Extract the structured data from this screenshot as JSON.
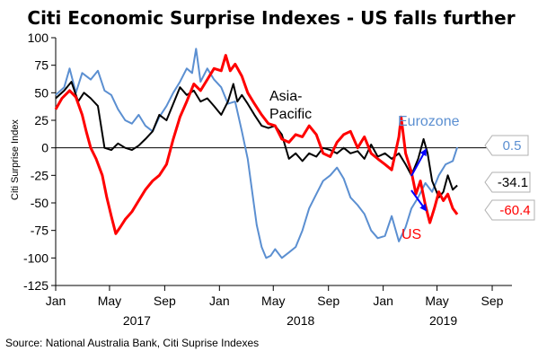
{
  "chart_data": {
    "type": "line",
    "title": "Citi Economic Surprise Indexes - US falls further",
    "ylabel": "Citi Surprise Index",
    "xlabel": "",
    "ylim": [
      -125,
      100
    ],
    "yticks": [
      100,
      75,
      50,
      25,
      0,
      -25,
      -50,
      -75,
      -100,
      -125
    ],
    "xlim": [
      "2017-01-01",
      "2019-10-15"
    ],
    "xticks": [
      {
        "label": "Jan",
        "date": "2017-01-01"
      },
      {
        "label": "May",
        "date": "2017-05-01"
      },
      {
        "label": "Sep",
        "date": "2017-09-01"
      },
      {
        "label": "Jan",
        "date": "2018-01-01"
      },
      {
        "label": "May",
        "date": "2018-05-01"
      },
      {
        "label": "Sep",
        "date": "2018-09-01"
      },
      {
        "label": "Jan",
        "date": "2019-01-01"
      },
      {
        "label": "May",
        "date": "2019-05-01"
      },
      {
        "label": "Sep",
        "date": "2019-09-01"
      }
    ],
    "year_labels": [
      {
        "label": "2017",
        "date": "2017-07-01"
      },
      {
        "label": "2018",
        "date": "2018-07-01"
      },
      {
        "label": "2019",
        "date": "2019-05-15"
      }
    ],
    "grid": false,
    "zero_line": true,
    "series": [
      {
        "name": "Eurozone",
        "color": "#5b8fd1",
        "points": [
          [
            "2017-01-01",
            48
          ],
          [
            "2017-01-20",
            55
          ],
          [
            "2017-02-01",
            72
          ],
          [
            "2017-02-15",
            50
          ],
          [
            "2017-03-01",
            68
          ],
          [
            "2017-03-20",
            62
          ],
          [
            "2017-04-05",
            70
          ],
          [
            "2017-04-20",
            52
          ],
          [
            "2017-05-05",
            48
          ],
          [
            "2017-05-20",
            35
          ],
          [
            "2017-06-05",
            25
          ],
          [
            "2017-06-20",
            22
          ],
          [
            "2017-07-05",
            30
          ],
          [
            "2017-07-20",
            20
          ],
          [
            "2017-08-05",
            15
          ],
          [
            "2017-08-20",
            28
          ],
          [
            "2017-09-05",
            38
          ],
          [
            "2017-09-20",
            50
          ],
          [
            "2017-10-05",
            60
          ],
          [
            "2017-10-20",
            72
          ],
          [
            "2017-11-01",
            68
          ],
          [
            "2017-11-10",
            90
          ],
          [
            "2017-11-20",
            60
          ],
          [
            "2017-12-05",
            72
          ],
          [
            "2017-12-20",
            62
          ],
          [
            "2018-01-05",
            55
          ],
          [
            "2018-01-20",
            40
          ],
          [
            "2018-02-05",
            42
          ],
          [
            "2018-02-20",
            15
          ],
          [
            "2018-03-05",
            -10
          ],
          [
            "2018-03-15",
            -40
          ],
          [
            "2018-03-25",
            -70
          ],
          [
            "2018-04-05",
            -90
          ],
          [
            "2018-04-15",
            -100
          ],
          [
            "2018-04-25",
            -98
          ],
          [
            "2018-05-05",
            -92
          ],
          [
            "2018-05-20",
            -100
          ],
          [
            "2018-06-05",
            -95
          ],
          [
            "2018-06-20",
            -90
          ],
          [
            "2018-07-05",
            -75
          ],
          [
            "2018-07-20",
            -55
          ],
          [
            "2018-08-05",
            -42
          ],
          [
            "2018-08-20",
            -30
          ],
          [
            "2018-09-05",
            -25
          ],
          [
            "2018-09-20",
            -18
          ],
          [
            "2018-10-05",
            -28
          ],
          [
            "2018-10-20",
            -45
          ],
          [
            "2018-11-05",
            -52
          ],
          [
            "2018-11-20",
            -60
          ],
          [
            "2018-12-05",
            -75
          ],
          [
            "2018-12-20",
            -82
          ],
          [
            "2019-01-05",
            -80
          ],
          [
            "2019-01-20",
            -62
          ],
          [
            "2019-02-05",
            -85
          ],
          [
            "2019-02-20",
            -72
          ],
          [
            "2019-03-05",
            -55
          ],
          [
            "2019-03-20",
            -45
          ],
          [
            "2019-04-05",
            -32
          ],
          [
            "2019-04-20",
            -40
          ],
          [
            "2019-05-05",
            -25
          ],
          [
            "2019-05-20",
            -15
          ],
          [
            "2019-06-05",
            -12
          ],
          [
            "2019-06-15",
            0.5
          ]
        ],
        "end_label": "0.5"
      },
      {
        "name": "Asia-Pacific",
        "color": "#000000",
        "points": [
          [
            "2017-01-01",
            45
          ],
          [
            "2017-01-20",
            52
          ],
          [
            "2017-02-05",
            60
          ],
          [
            "2017-02-20",
            42
          ],
          [
            "2017-03-05",
            50
          ],
          [
            "2017-03-20",
            45
          ],
          [
            "2017-04-05",
            38
          ],
          [
            "2017-04-20",
            0
          ],
          [
            "2017-05-05",
            -2
          ],
          [
            "2017-05-20",
            4
          ],
          [
            "2017-06-05",
            0
          ],
          [
            "2017-06-20",
            -2
          ],
          [
            "2017-07-05",
            2
          ],
          [
            "2017-07-20",
            8
          ],
          [
            "2017-08-05",
            15
          ],
          [
            "2017-08-20",
            30
          ],
          [
            "2017-09-05",
            25
          ],
          [
            "2017-09-20",
            40
          ],
          [
            "2017-10-05",
            55
          ],
          [
            "2017-10-20",
            48
          ],
          [
            "2017-11-05",
            52
          ],
          [
            "2017-11-20",
            42
          ],
          [
            "2017-12-05",
            45
          ],
          [
            "2017-12-20",
            38
          ],
          [
            "2018-01-05",
            30
          ],
          [
            "2018-01-20",
            42
          ],
          [
            "2018-02-01",
            58
          ],
          [
            "2018-02-10",
            42
          ],
          [
            "2018-02-20",
            48
          ],
          [
            "2018-03-05",
            40
          ],
          [
            "2018-03-20",
            30
          ],
          [
            "2018-04-05",
            20
          ],
          [
            "2018-04-20",
            18
          ],
          [
            "2018-05-05",
            20
          ],
          [
            "2018-05-20",
            12
          ],
          [
            "2018-06-05",
            -10
          ],
          [
            "2018-06-20",
            -5
          ],
          [
            "2018-07-05",
            -12
          ],
          [
            "2018-07-20",
            -5
          ],
          [
            "2018-08-05",
            -8
          ],
          [
            "2018-08-20",
            0
          ],
          [
            "2018-09-05",
            -2
          ],
          [
            "2018-09-20",
            -5
          ],
          [
            "2018-10-05",
            0
          ],
          [
            "2018-10-20",
            -5
          ],
          [
            "2018-11-05",
            -3
          ],
          [
            "2018-11-20",
            -10
          ],
          [
            "2018-12-05",
            3
          ],
          [
            "2018-12-20",
            -8
          ],
          [
            "2019-01-05",
            -5
          ],
          [
            "2019-01-20",
            -10
          ],
          [
            "2019-02-05",
            -5
          ],
          [
            "2019-02-20",
            -15
          ],
          [
            "2019-03-05",
            -25
          ],
          [
            "2019-03-20",
            -10
          ],
          [
            "2019-04-01",
            8
          ],
          [
            "2019-04-10",
            -5
          ],
          [
            "2019-04-20",
            -30
          ],
          [
            "2019-05-05",
            -45
          ],
          [
            "2019-05-15",
            -40
          ],
          [
            "2019-05-25",
            -25
          ],
          [
            "2019-06-05",
            -38
          ],
          [
            "2019-06-15",
            -34.1
          ]
        ],
        "end_label": "-34.1"
      },
      {
        "name": "US",
        "color": "#ff0000",
        "points": [
          [
            "2017-01-01",
            35
          ],
          [
            "2017-01-15",
            45
          ],
          [
            "2017-02-01",
            52
          ],
          [
            "2017-02-15",
            46
          ],
          [
            "2017-03-01",
            30
          ],
          [
            "2017-03-10",
            15
          ],
          [
            "2017-03-20",
            0
          ],
          [
            "2017-04-01",
            -10
          ],
          [
            "2017-04-15",
            -25
          ],
          [
            "2017-04-25",
            -45
          ],
          [
            "2017-05-05",
            -62
          ],
          [
            "2017-05-15",
            -78
          ],
          [
            "2017-05-25",
            -72
          ],
          [
            "2017-06-05",
            -65
          ],
          [
            "2017-06-20",
            -58
          ],
          [
            "2017-07-05",
            -48
          ],
          [
            "2017-07-20",
            -38
          ],
          [
            "2017-08-05",
            -30
          ],
          [
            "2017-08-20",
            -25
          ],
          [
            "2017-09-05",
            -15
          ],
          [
            "2017-09-20",
            8
          ],
          [
            "2017-10-05",
            28
          ],
          [
            "2017-10-20",
            42
          ],
          [
            "2017-11-05",
            58
          ],
          [
            "2017-11-20",
            52
          ],
          [
            "2017-12-05",
            62
          ],
          [
            "2017-12-20",
            72
          ],
          [
            "2018-01-05",
            70
          ],
          [
            "2018-01-15",
            84
          ],
          [
            "2018-01-25",
            70
          ],
          [
            "2018-02-05",
            76
          ],
          [
            "2018-02-20",
            65
          ],
          [
            "2018-03-05",
            50
          ],
          [
            "2018-03-20",
            40
          ],
          [
            "2018-04-05",
            30
          ],
          [
            "2018-04-20",
            22
          ],
          [
            "2018-05-05",
            20
          ],
          [
            "2018-05-20",
            8
          ],
          [
            "2018-06-05",
            5
          ],
          [
            "2018-06-20",
            12
          ],
          [
            "2018-07-05",
            10
          ],
          [
            "2018-07-20",
            20
          ],
          [
            "2018-08-05",
            12
          ],
          [
            "2018-08-20",
            -5
          ],
          [
            "2018-09-05",
            -8
          ],
          [
            "2018-09-20",
            5
          ],
          [
            "2018-10-05",
            12
          ],
          [
            "2018-10-20",
            15
          ],
          [
            "2018-11-05",
            0
          ],
          [
            "2018-11-20",
            10
          ],
          [
            "2018-12-05",
            -5
          ],
          [
            "2018-12-20",
            -10
          ],
          [
            "2019-01-05",
            -15
          ],
          [
            "2019-01-20",
            -20
          ],
          [
            "2019-02-05",
            10
          ],
          [
            "2019-02-10",
            28
          ],
          [
            "2019-02-20",
            -5
          ],
          [
            "2019-03-05",
            -22
          ],
          [
            "2019-03-15",
            -42
          ],
          [
            "2019-03-25",
            -30
          ],
          [
            "2019-04-05",
            -52
          ],
          [
            "2019-04-15",
            -68
          ],
          [
            "2019-04-25",
            -55
          ],
          [
            "2019-05-05",
            -40
          ],
          [
            "2019-05-15",
            -48
          ],
          [
            "2019-05-25",
            -42
          ],
          [
            "2019-06-05",
            -55
          ],
          [
            "2019-06-15",
            -60.4
          ]
        ],
        "end_label": "-60.4"
      }
    ],
    "series_labels": [
      {
        "text_lines": [
          "Asia-",
          "Pacific"
        ],
        "series": "Asia-Pacific",
        "color": "#000000"
      },
      {
        "text_lines": [
          "Eurozone"
        ],
        "series": "Eurozone",
        "color": "#5b8fd1"
      },
      {
        "text_lines": [
          "US"
        ],
        "series": "US",
        "color": "#ff0000"
      }
    ],
    "callouts": [
      {
        "text": "0.5",
        "color": "#5b8fd1",
        "border": "#b0b0b0",
        "value": 0.5
      },
      {
        "text": "-34.1",
        "color": "#000000",
        "border": "#b0b0b0",
        "value": -34.1
      },
      {
        "text": "-60.4",
        "color": "#ff0000",
        "border": "#b0b0b0",
        "value": -60.4
      }
    ],
    "arrow_color": "#0000ff",
    "source": "Source: National Australia Bank, Citi Suprise Indexes"
  }
}
